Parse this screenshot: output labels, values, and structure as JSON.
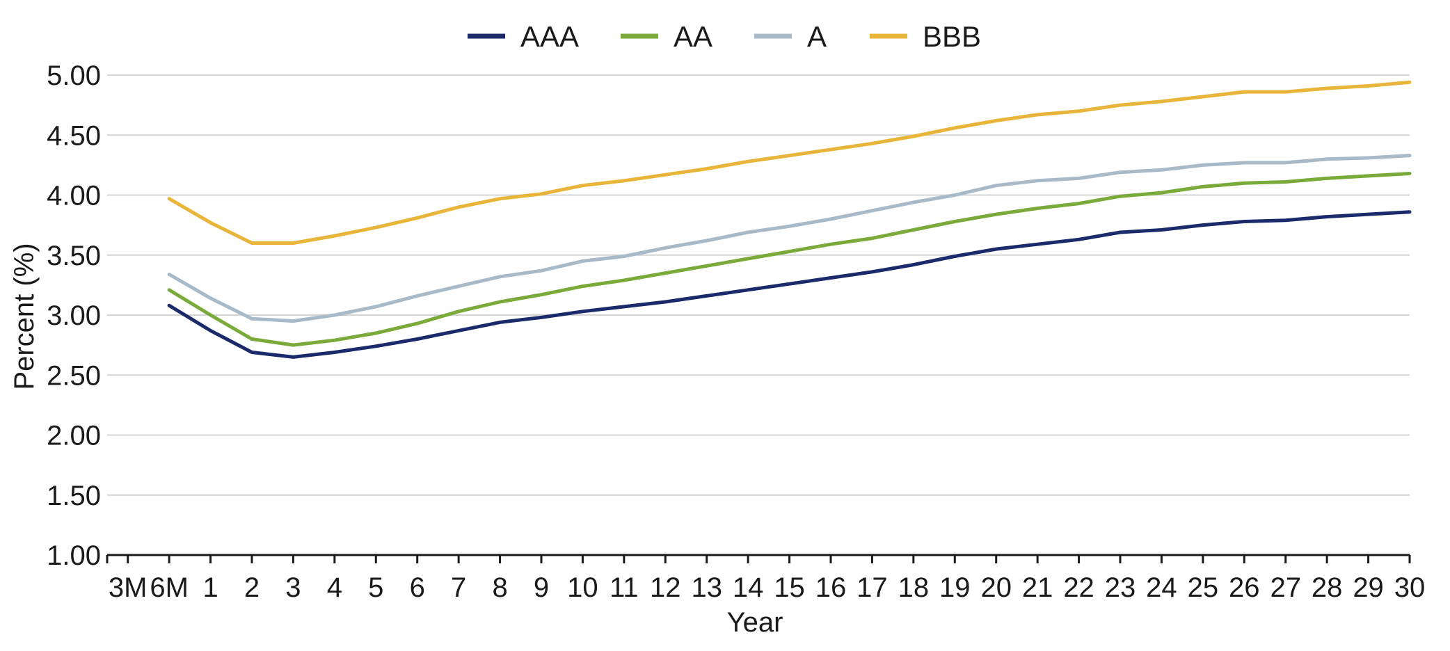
{
  "chart_data": {
    "type": "line",
    "title": "",
    "xlabel": "Year",
    "ylabel": "Percent (%)",
    "ylim": [
      1.0,
      5.0
    ],
    "yticks": [
      "1.00",
      "1.50",
      "2.00",
      "2.50",
      "3.00",
      "3.50",
      "4.00",
      "4.50",
      "5.00"
    ],
    "grid": "horizontal",
    "legend": "top-center",
    "categories": [
      "3M",
      "6M",
      "1",
      "2",
      "3",
      "4",
      "5",
      "6",
      "7",
      "8",
      "9",
      "10",
      "11",
      "12",
      "13",
      "14",
      "15",
      "16",
      "17",
      "18",
      "19",
      "20",
      "21",
      "22",
      "23",
      "24",
      "25",
      "26",
      "27",
      "28",
      "29",
      "30"
    ],
    "series": [
      {
        "name": "AAA",
        "color": "#1b2a6b",
        "values": [
          null,
          3.08,
          2.87,
          2.69,
          2.65,
          2.69,
          2.74,
          2.8,
          2.87,
          2.94,
          2.98,
          3.03,
          3.07,
          3.11,
          3.16,
          3.21,
          3.26,
          3.31,
          3.36,
          3.42,
          3.49,
          3.55,
          3.59,
          3.63,
          3.69,
          3.71,
          3.75,
          3.78,
          3.79,
          3.82,
          3.84,
          3.86
        ]
      },
      {
        "name": "AA",
        "color": "#7aaa3a",
        "values": [
          null,
          3.21,
          3.0,
          2.8,
          2.75,
          2.79,
          2.85,
          2.93,
          3.03,
          3.11,
          3.17,
          3.24,
          3.29,
          3.35,
          3.41,
          3.47,
          3.53,
          3.59,
          3.64,
          3.71,
          3.78,
          3.84,
          3.89,
          3.93,
          3.99,
          4.02,
          4.07,
          4.1,
          4.11,
          4.14,
          4.16,
          4.18
        ]
      },
      {
        "name": "A",
        "color": "#a8b9c8",
        "values": [
          null,
          3.34,
          3.14,
          2.97,
          2.95,
          3.0,
          3.07,
          3.16,
          3.24,
          3.32,
          3.37,
          3.45,
          3.49,
          3.56,
          3.62,
          3.69,
          3.74,
          3.8,
          3.87,
          3.94,
          4.0,
          4.08,
          4.12,
          4.14,
          4.19,
          4.21,
          4.25,
          4.27,
          4.27,
          4.3,
          4.31,
          4.33
        ]
      },
      {
        "name": "BBB",
        "color": "#e8b53a",
        "values": [
          null,
          3.97,
          3.77,
          3.6,
          3.6,
          3.66,
          3.73,
          3.81,
          3.9,
          3.97,
          4.01,
          4.08,
          4.12,
          4.17,
          4.22,
          4.28,
          4.33,
          4.38,
          4.43,
          4.49,
          4.56,
          4.62,
          4.67,
          4.7,
          4.75,
          4.78,
          4.82,
          4.86,
          4.86,
          4.89,
          4.91,
          4.94
        ]
      }
    ]
  }
}
